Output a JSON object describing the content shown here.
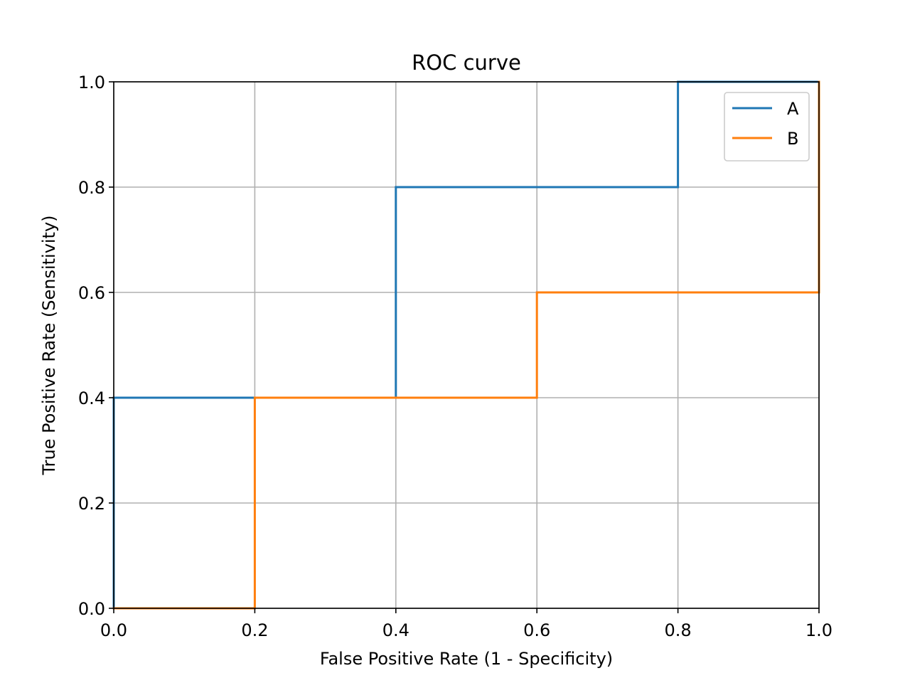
{
  "chart_data": {
    "type": "line",
    "title": "ROC curve",
    "xlabel": "False Positive Rate (1 - Specificity)",
    "ylabel": "True Positive Rate (Sensitivity)",
    "xlim": [
      0.0,
      1.0
    ],
    "ylim": [
      0.0,
      1.0
    ],
    "xticks": [
      "0.0",
      "0.2",
      "0.4",
      "0.6",
      "0.8",
      "1.0"
    ],
    "yticks": [
      "0.0",
      "0.2",
      "0.4",
      "0.6",
      "0.8",
      "1.0"
    ],
    "grid": true,
    "legend_position": "top-right",
    "series": [
      {
        "name": "A",
        "color": "#1f77b4",
        "x": [
          0.0,
          0.0,
          0.2,
          0.4,
          0.4,
          0.6,
          0.8,
          0.8,
          1.0
        ],
        "y": [
          0.0,
          0.4,
          0.4,
          0.4,
          0.8,
          0.8,
          0.8,
          1.0,
          1.0
        ]
      },
      {
        "name": "B",
        "color": "#ff7f0e",
        "x": [
          0.0,
          0.2,
          0.2,
          0.4,
          0.6,
          0.6,
          0.8,
          1.0,
          1.0
        ],
        "y": [
          0.0,
          0.0,
          0.4,
          0.4,
          0.4,
          0.6,
          0.6,
          0.6,
          1.0
        ]
      }
    ]
  }
}
